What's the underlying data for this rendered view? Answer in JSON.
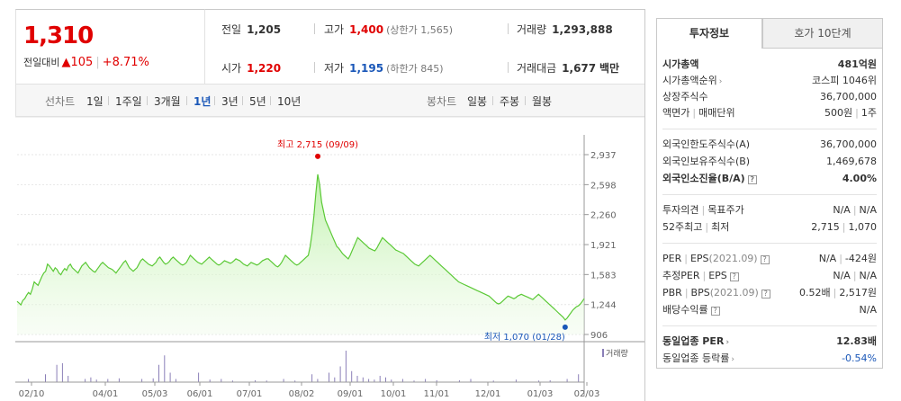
{
  "quote": {
    "price": "1,310",
    "change_label": "전일대비",
    "change_triangle": "▲",
    "change_amount": "105",
    "change_rate": "+8.71%"
  },
  "info": {
    "prev_close_label": "전일",
    "prev_close": "1,205",
    "high_label": "고가",
    "high": "1,400",
    "upper_limit": "(상한가 1,565)",
    "volume_label": "거래량",
    "volume": "1,293,888",
    "open_label": "시가",
    "open": "1,220",
    "low_label": "저가",
    "low": "1,195",
    "lower_limit": "(하한가 845)",
    "value_label": "거래대금",
    "value": "1,677",
    "value_unit": "백만"
  },
  "period_bar": {
    "line_label": "선차트",
    "line_options": [
      "1일",
      "1주일",
      "3개월",
      "1년",
      "3년",
      "5년",
      "10년"
    ],
    "active_option": "1년",
    "candle_label": "봉차트",
    "candle_options": [
      "일봉",
      "주봉",
      "월봉"
    ]
  },
  "chart_data": {
    "type": "area",
    "x_ticks": [
      "02/10",
      "04/01",
      "05/03",
      "06/01",
      "07/01",
      "08/02",
      "09/01",
      "10/01",
      "11/01",
      "12/01",
      "01/03",
      "02/03"
    ],
    "y_ticks": [
      "2,937",
      "2,598",
      "2,260",
      "1,921",
      "1,583",
      "1,244",
      "906"
    ],
    "ylim": [
      906,
      2937
    ],
    "max_annotation": "최고 2,715 (09/09)",
    "min_annotation": "최저 1,070 (01/28)",
    "max_value": 2715,
    "min_value": 1070,
    "volume_legend": "거래량",
    "price_series": [
      1280,
      1260,
      1240,
      1290,
      1310,
      1350,
      1380,
      1360,
      1420,
      1500,
      1480,
      1460,
      1510,
      1560,
      1600,
      1620,
      1700,
      1680,
      1650,
      1620,
      1660,
      1640,
      1600,
      1580,
      1620,
      1650,
      1630,
      1680,
      1700,
      1660,
      1640,
      1620,
      1600,
      1640,
      1680,
      1700,
      1720,
      1690,
      1660,
      1640,
      1620,
      1610,
      1640,
      1670,
      1700,
      1720,
      1700,
      1680,
      1660,
      1650,
      1640,
      1620,
      1600,
      1630,
      1660,
      1690,
      1720,
      1740,
      1700,
      1660,
      1640,
      1620,
      1640,
      1660,
      1700,
      1740,
      1760,
      1740,
      1720,
      1700,
      1690,
      1680,
      1700,
      1720,
      1760,
      1780,
      1750,
      1720,
      1700,
      1710,
      1730,
      1760,
      1780,
      1760,
      1740,
      1720,
      1700,
      1690,
      1700,
      1720,
      1760,
      1800,
      1780,
      1760,
      1740,
      1720,
      1710,
      1700,
      1720,
      1740,
      1760,
      1780,
      1760,
      1740,
      1720,
      1700,
      1690,
      1700,
      1720,
      1740,
      1730,
      1720,
      1710,
      1720,
      1740,
      1760,
      1750,
      1740,
      1720,
      1700,
      1690,
      1680,
      1700,
      1720,
      1710,
      1700,
      1690,
      1700,
      1720,
      1740,
      1750,
      1760,
      1760,
      1740,
      1720,
      1700,
      1680,
      1670,
      1690,
      1720,
      1760,
      1800,
      1780,
      1760,
      1740,
      1720,
      1700,
      1690,
      1700,
      1720,
      1740,
      1760,
      1780,
      1800,
      1900,
      2050,
      2250,
      2500,
      2715,
      2600,
      2400,
      2300,
      2200,
      2150,
      2100,
      2050,
      2000,
      1950,
      1900,
      1880,
      1850,
      1820,
      1800,
      1780,
      1760,
      1800,
      1850,
      1900,
      1950,
      2000,
      1980,
      1960,
      1940,
      1920,
      1900,
      1880,
      1870,
      1860,
      1850,
      1880,
      1920,
      1960,
      2000,
      1980,
      1960,
      1940,
      1920,
      1900,
      1880,
      1860,
      1850,
      1840,
      1830,
      1820,
      1800,
      1780,
      1760,
      1740,
      1720,
      1700,
      1690,
      1680,
      1700,
      1720,
      1740,
      1760,
      1780,
      1800,
      1780,
      1760,
      1740,
      1720,
      1700,
      1680,
      1660,
      1640,
      1620,
      1600,
      1580,
      1560,
      1540,
      1520,
      1500,
      1490,
      1480,
      1470,
      1460,
      1450,
      1440,
      1430,
      1420,
      1410,
      1400,
      1390,
      1380,
      1370,
      1360,
      1350,
      1340,
      1320,
      1300,
      1280,
      1260,
      1250,
      1260,
      1280,
      1300,
      1320,
      1340,
      1330,
      1320,
      1310,
      1320,
      1340,
      1350,
      1360,
      1350,
      1340,
      1330,
      1320,
      1310,
      1300,
      1320,
      1340,
      1360,
      1340,
      1320,
      1300,
      1280,
      1260,
      1240,
      1220,
      1200,
      1180,
      1160,
      1140,
      1120,
      1100,
      1070,
      1090,
      1120,
      1150,
      1180,
      1200,
      1220,
      1230,
      1250,
      1280,
      1310
    ],
    "volume_spikes": [
      {
        "x": 0.02,
        "v": 0.1
      },
      {
        "x": 0.05,
        "v": 0.25
      },
      {
        "x": 0.07,
        "v": 0.55
      },
      {
        "x": 0.08,
        "v": 0.6
      },
      {
        "x": 0.09,
        "v": 0.2
      },
      {
        "x": 0.12,
        "v": 0.1
      },
      {
        "x": 0.13,
        "v": 0.15
      },
      {
        "x": 0.14,
        "v": 0.08
      },
      {
        "x": 0.16,
        "v": 0.1
      },
      {
        "x": 0.18,
        "v": 0.12
      },
      {
        "x": 0.22,
        "v": 0.1
      },
      {
        "x": 0.24,
        "v": 0.12
      },
      {
        "x": 0.25,
        "v": 0.55
      },
      {
        "x": 0.26,
        "v": 0.85
      },
      {
        "x": 0.27,
        "v": 0.3
      },
      {
        "x": 0.28,
        "v": 0.1
      },
      {
        "x": 0.32,
        "v": 0.3
      },
      {
        "x": 0.34,
        "v": 0.08
      },
      {
        "x": 0.36,
        "v": 0.1
      },
      {
        "x": 0.38,
        "v": 0.05
      },
      {
        "x": 0.42,
        "v": 0.06
      },
      {
        "x": 0.44,
        "v": 0.05
      },
      {
        "x": 0.47,
        "v": 0.1
      },
      {
        "x": 0.49,
        "v": 0.05
      },
      {
        "x": 0.52,
        "v": 0.25
      },
      {
        "x": 0.53,
        "v": 0.1
      },
      {
        "x": 0.55,
        "v": 0.3
      },
      {
        "x": 0.56,
        "v": 0.15
      },
      {
        "x": 0.57,
        "v": 0.5
      },
      {
        "x": 0.58,
        "v": 1.0
      },
      {
        "x": 0.59,
        "v": 0.35
      },
      {
        "x": 0.6,
        "v": 0.2
      },
      {
        "x": 0.61,
        "v": 0.15
      },
      {
        "x": 0.62,
        "v": 0.1
      },
      {
        "x": 0.63,
        "v": 0.08
      },
      {
        "x": 0.64,
        "v": 0.2
      },
      {
        "x": 0.65,
        "v": 0.15
      },
      {
        "x": 0.66,
        "v": 0.08
      },
      {
        "x": 0.68,
        "v": 0.1
      },
      {
        "x": 0.7,
        "v": 0.05
      },
      {
        "x": 0.72,
        "v": 0.1
      },
      {
        "x": 0.74,
        "v": 0.06
      },
      {
        "x": 0.78,
        "v": 0.06
      },
      {
        "x": 0.8,
        "v": 0.1
      },
      {
        "x": 0.84,
        "v": 0.05
      },
      {
        "x": 0.88,
        "v": 0.08
      },
      {
        "x": 0.92,
        "v": 0.05
      },
      {
        "x": 0.94,
        "v": 0.06
      },
      {
        "x": 0.97,
        "v": 0.1
      },
      {
        "x": 0.99,
        "v": 0.25
      }
    ]
  },
  "right_panel": {
    "tab_active": "투자정보",
    "tab_inactive": "호가 10단계",
    "market_cap_label": "시가총액",
    "market_cap": "481억원",
    "market_cap_rank_label": "시가총액순위",
    "market_cap_rank": "코스피 1046위",
    "listed_shares_label": "상장주식수",
    "listed_shares": "36,700,000",
    "par_value_label": "액면가",
    "trade_unit_label": "매매단위",
    "par_value": "500원",
    "trade_unit": "1주",
    "foreign_limit_label": "외국인한도주식수(A)",
    "foreign_limit": "36,700,000",
    "foreign_hold_label": "외국인보유주식수(B)",
    "foreign_hold": "1,469,678",
    "foreign_ratio_label": "외국인소진율(B/A)",
    "foreign_ratio": "4.00%",
    "opinion_label": "투자의견",
    "target_label": "목표주가",
    "opinion": "N/A",
    "target": "N/A",
    "w52_high_label": "52주최고",
    "w52_low_label": "최저",
    "w52_high": "2,715",
    "w52_low": "1,070",
    "per_label": "PER",
    "eps_label": "EPS",
    "eps_period": "(2021.09)",
    "per": "N/A",
    "eps": "-424원",
    "est_per_label": "추정PER",
    "est_eps_label": "EPS",
    "est_per": "N/A",
    "est_eps": "N/A",
    "pbr_label": "PBR",
    "bps_label": "BPS",
    "bps_period": "(2021.09)",
    "pbr": "0.52배",
    "bps": "2,517원",
    "div_label": "배당수익률",
    "div": "N/A",
    "ind_per_label": "동일업종 PER",
    "ind_per": "12.83배",
    "ind_chg_label": "동일업종 등락률",
    "ind_chg": "-0.54%"
  }
}
